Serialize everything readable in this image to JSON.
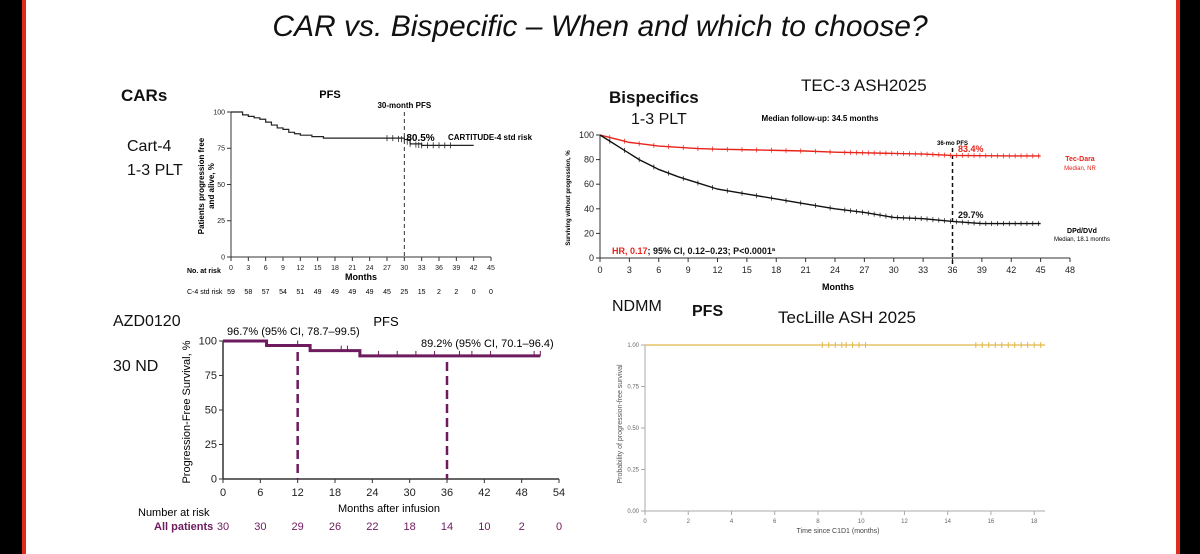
{
  "slide": {
    "title": "CAR vs. Bispecific – When and which to choose?",
    "colors": {
      "bar": "#e02b1f",
      "car_curve": "#222222",
      "tec_dara": "#e8231a",
      "dpd": "#111111",
      "azd": "#6d1a5e",
      "teclille": "#e0b84a"
    }
  },
  "panels": {
    "cars": {
      "heading": "CARs",
      "study": "Cart-4",
      "line": "1-3 PLT"
    },
    "bispecifics": {
      "heading": "Bispecifics",
      "line": "1-3 PLT",
      "study": "TEC-3  ASH2025"
    },
    "azd": {
      "study": "AZD0120",
      "cohort": "30 ND"
    },
    "ndmm": {
      "heading": "NDMM",
      "pfs": "PFS",
      "study": "TecLille ASH 2025"
    }
  },
  "chart_data": [
    {
      "id": "cartitude4",
      "type": "line",
      "title": "PFS",
      "xlabel": "Months",
      "ylabel": "Patients progression free and alive, %",
      "xticks": [
        0,
        3,
        6,
        9,
        12,
        15,
        18,
        21,
        24,
        27,
        30,
        33,
        36,
        39,
        42,
        45
      ],
      "yticks": [
        0,
        25,
        50,
        75,
        100
      ],
      "xlim": [
        0,
        45
      ],
      "ylim": [
        0,
        100
      ],
      "reference_line": {
        "x": 30,
        "label": "30-month PFS",
        "value_label": "80.5%"
      },
      "series": [
        {
          "name": "CARTITUDE-4 std risk",
          "x": [
            0,
            1,
            2,
            3,
            4,
            5,
            6,
            7,
            8,
            9,
            10,
            11,
            12,
            14,
            16,
            18,
            20,
            24,
            28,
            30,
            31,
            33,
            36,
            42
          ],
          "y": [
            100,
            100,
            98,
            97,
            96,
            95,
            93,
            91,
            89,
            88,
            86,
            85,
            84,
            83,
            82,
            82,
            82,
            82,
            82,
            81,
            78,
            77,
            77,
            77
          ]
        }
      ],
      "censor_x": [
        27,
        28,
        29,
        29.5,
        30,
        30.5,
        31,
        32,
        32.5,
        33,
        34,
        35,
        36,
        37,
        38
      ],
      "risk_table": {
        "label": "No. at risk",
        "rows": [
          {
            "name": "C-4 std risk",
            "values": [
              "59",
              "58",
              "57",
              "54",
              "51",
              "49",
              "49",
              "49",
              "49",
              "45",
              "25",
              "15",
              "2",
              "2",
              "0",
              "0"
            ]
          }
        ]
      }
    },
    {
      "id": "tec3",
      "type": "line",
      "subtitle": "Median follow-up: 34.5 months",
      "xlabel": "Months",
      "ylabel": "Surviving without progression, %",
      "xticks": [
        0,
        3,
        6,
        9,
        12,
        15,
        18,
        21,
        24,
        27,
        30,
        33,
        36,
        39,
        42,
        45,
        48
      ],
      "yticks": [
        0,
        20,
        40,
        60,
        80,
        100
      ],
      "xlim": [
        0,
        48
      ],
      "ylim": [
        0,
        100
      ],
      "reference_line": {
        "x": 36,
        "label": "36-mo PFS"
      },
      "series": [
        {
          "name": "Tec-Dara",
          "sublabel": "Median, NR",
          "value_label": "83.4%",
          "x": [
            0,
            1,
            2,
            3,
            4,
            5,
            6,
            8,
            10,
            12,
            15,
            18,
            21,
            24,
            27,
            30,
            33,
            36,
            39,
            42,
            45
          ],
          "y": [
            100,
            98,
            96,
            94,
            93,
            92,
            91,
            90,
            89,
            88.5,
            88,
            87.5,
            87,
            86,
            85.5,
            85,
            84.5,
            83.4,
            83.2,
            83,
            83
          ]
        },
        {
          "name": "DPd/DVd",
          "sublabel": "Median, 18.1 months",
          "value_label": "29.7%",
          "x": [
            0,
            1,
            2,
            3,
            4,
            5,
            6,
            8,
            10,
            12,
            15,
            18,
            21,
            24,
            27,
            30,
            33,
            36,
            39,
            42,
            45
          ],
          "y": [
            100,
            95,
            90,
            85,
            80,
            76,
            72,
            66,
            61,
            56,
            52,
            48,
            44,
            40,
            37,
            33,
            32,
            29.7,
            28,
            28,
            28
          ]
        }
      ],
      "hr_label": "HR, 0.17",
      "hr_text": "; 95% CI, 0.12–0.23; P<0.0001ª"
    },
    {
      "id": "azd0120",
      "type": "line",
      "title": "PFS",
      "xlabel": "Months after infusion",
      "ylabel": "Progression-Free Survival, %",
      "xticks": [
        0,
        6,
        12,
        18,
        24,
        30,
        36,
        42,
        48,
        54
      ],
      "yticks": [
        0,
        25,
        50,
        75,
        100
      ],
      "xlim": [
        0,
        54
      ],
      "ylim": [
        0,
        100
      ],
      "annotations": [
        {
          "x": 12,
          "text": "96.7% (95% CI, 78.7–99.5)"
        },
        {
          "x": 36,
          "text": "89.2% (95% CI, 70.1–96.4)"
        }
      ],
      "series": [
        {
          "name": "All patients",
          "x": [
            0,
            7,
            7,
            14,
            14,
            22,
            22,
            51
          ],
          "y": [
            100,
            100,
            96.7,
            96.7,
            93,
            93,
            89.2,
            89.2
          ]
        }
      ],
      "censor_x": [
        12,
        19,
        20,
        25,
        28,
        31,
        34,
        38,
        40,
        43,
        50,
        51
      ],
      "risk_table": {
        "label": "Number at risk",
        "rows": [
          {
            "name": "All patients",
            "values": [
              "30",
              "30",
              "29",
              "26",
              "22",
              "18",
              "14",
              "10",
              "2",
              "0"
            ]
          }
        ]
      }
    },
    {
      "id": "teclille",
      "type": "line",
      "xlabel": "Time since C1D1 (months)",
      "ylabel": "Probability of progression-free survival",
      "xticks": [
        0,
        2,
        4,
        6,
        8,
        10,
        12,
        14,
        16,
        18
      ],
      "yticks": [
        "0.00",
        "0.25",
        "0.50",
        "0.75",
        "1.00"
      ],
      "xlim": [
        0,
        18.5
      ],
      "ylim": [
        0,
        1
      ],
      "series": [
        {
          "name": "All patients",
          "x": [
            0,
            18.5
          ],
          "y": [
            1,
            1
          ]
        }
      ],
      "censor_x": [
        8.2,
        8.5,
        8.8,
        9.1,
        9.3,
        9.6,
        9.9,
        10.2,
        15.3,
        15.6,
        15.9,
        16.2,
        16.5,
        16.8,
        17.1,
        17.4,
        17.7,
        18.0,
        18.3
      ]
    }
  ]
}
